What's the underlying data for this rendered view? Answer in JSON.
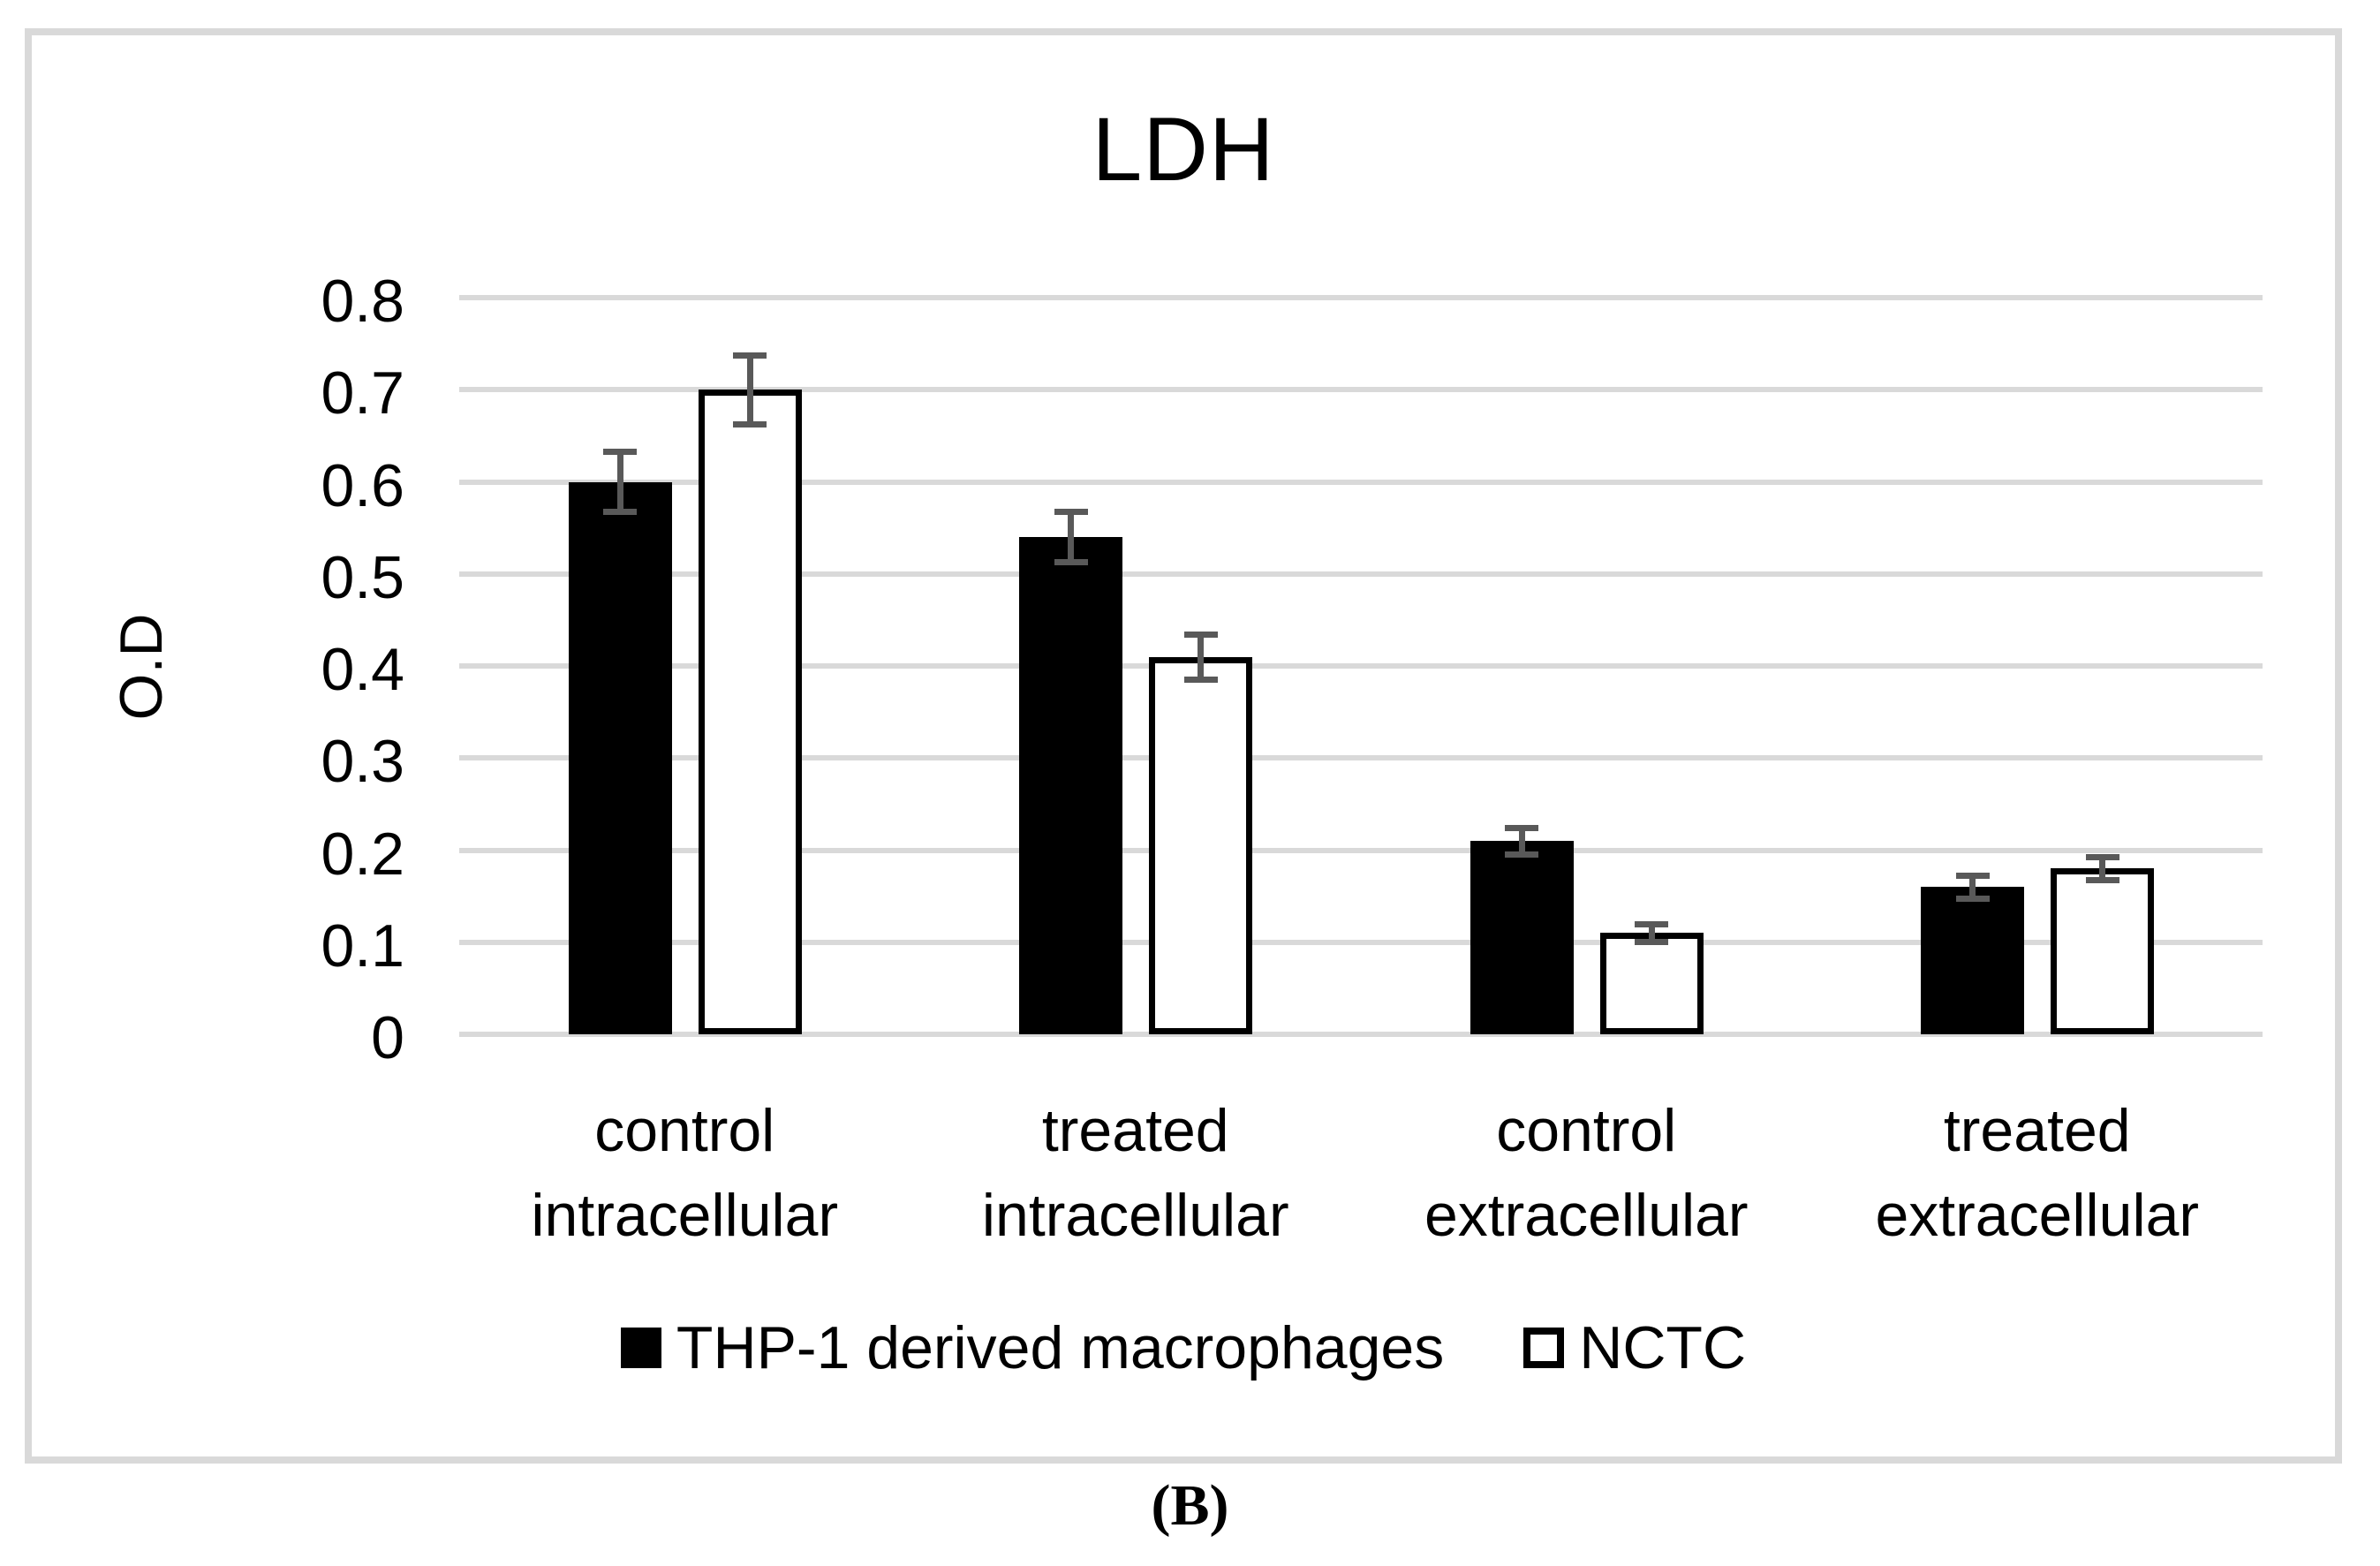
{
  "chart_data": {
    "type": "bar",
    "title": "LDH",
    "ylabel": "O.D",
    "ylim": [
      0,
      0.8
    ],
    "yticks": [
      "0",
      "0.1",
      "0.2",
      "0.3",
      "0.4",
      "0.5",
      "0.6",
      "0.7",
      "0.8"
    ],
    "grid": true,
    "legend_position": "bottom",
    "categories": [
      "control intracellular",
      "treated intracellular",
      "control extracellular",
      "treated extracellular"
    ],
    "series": [
      {
        "name": "THP-1 derived macrophages",
        "key": "thp1-derived-macrophages",
        "fill": "#000000",
        "border": "#000000",
        "values": [
          0.6,
          0.54,
          0.21,
          0.16
        ],
        "errors": [
          0.03,
          0.025,
          0.012,
          0.01
        ]
      },
      {
        "name": "NCTC",
        "key": "nctc",
        "fill": "#ffffff",
        "border": "#000000",
        "values": [
          0.7,
          0.41,
          0.11,
          0.18
        ],
        "errors": [
          0.035,
          0.022,
          0.007,
          0.01
        ]
      }
    ],
    "colors": {
      "gridline": "#d9d9d9",
      "frame": "#d9d9d9",
      "error_bar": "#595959",
      "text": "#000000",
      "background": "#ffffff"
    }
  },
  "figure": {
    "panel_label": "(B)"
  }
}
